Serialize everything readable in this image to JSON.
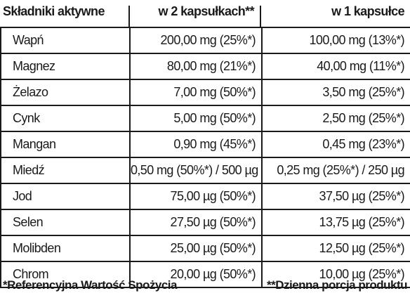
{
  "header": {
    "col_name": "Składniki aktywne",
    "col_two": "w 2 kapsułkach**",
    "col_one": "w 1 kapsułce"
  },
  "rows": [
    {
      "name": "Wapń",
      "two": "200,00 mg (25%*)",
      "one": "100,00 mg (13%*)"
    },
    {
      "name": "Magnez",
      "two": "80,00 mg (21%*)",
      "one": "40,00 mg (11%*)"
    },
    {
      "name": "Żelazo",
      "two": "7,00 mg (50%*)",
      "one": "3,50 mg (25%*)"
    },
    {
      "name": "Cynk",
      "two": "5,00 mg (50%*)",
      "one": "2,50 mg (25%*)"
    },
    {
      "name": "Mangan",
      "two": "0,90 mg (45%*)",
      "one": "0,45 mg (23%*)"
    },
    {
      "name": "Miedź",
      "two": "0,50 mg (50%*) / 500 µg",
      "one": "0,25 mg (25%*) / 250 µg"
    },
    {
      "name": "Jod",
      "two": "75,00 µg (50%*)",
      "one": "37,50 µg (25%*)"
    },
    {
      "name": "Selen",
      "two": "27,50 µg (50%*)",
      "one": "13,75 µg (25%*)"
    },
    {
      "name": "Molibden",
      "two": "25,00 µg (50%*)",
      "one": "12,50 µg (25%*)"
    },
    {
      "name": "Chrom",
      "two": "20,00 µg (50%*)",
      "one": "10,00 µg (25%*)"
    }
  ],
  "footer": {
    "note_ref": "*Referencyjna Wartość Spożycia",
    "note_portion": "**Dzienna porcja produktu"
  }
}
